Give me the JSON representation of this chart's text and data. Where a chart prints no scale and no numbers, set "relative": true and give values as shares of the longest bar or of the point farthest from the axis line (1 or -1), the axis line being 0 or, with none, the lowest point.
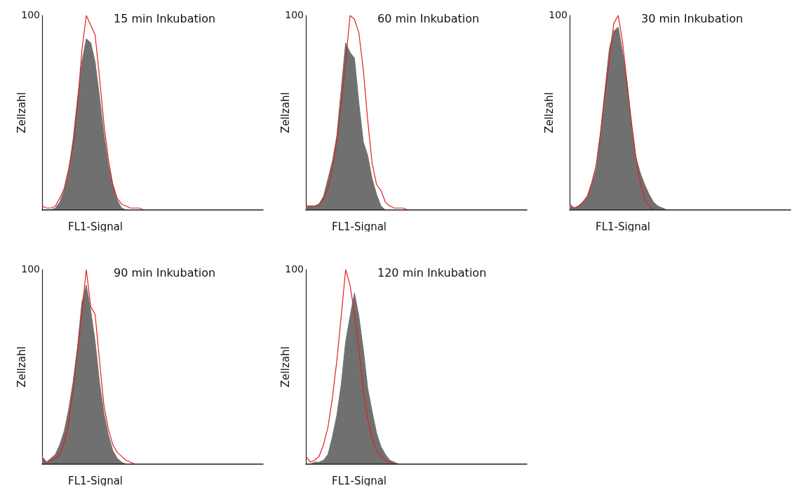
{
  "chart_data": [
    {
      "type": "area",
      "relative": true,
      "title": "15 min Inkubation",
      "xlabel": "FL1-Signal",
      "ylabel": "Zellzahl",
      "annotations": [
        "100"
      ],
      "grid": false,
      "marker": "none",
      "line_style": "solid",
      "categories": [
        null,
        null,
        null,
        null,
        null,
        null,
        null,
        null,
        null,
        null,
        null,
        null,
        null,
        null,
        null,
        null,
        null,
        null,
        null,
        null,
        null,
        null,
        null,
        null,
        null,
        null,
        null,
        null,
        null,
        null,
        null,
        null,
        null,
        null,
        null,
        null,
        null,
        null,
        null,
        null,
        null,
        null,
        null,
        null,
        null,
        null,
        null,
        null,
        null,
        null,
        null
      ],
      "series": [
        {
          "color": "#707070",
          "values": [
            0,
            0,
            0,
            0.01,
            0.04,
            0.1,
            0.2,
            0.36,
            0.57,
            0.76,
            0.88,
            0.86,
            0.76,
            0.58,
            0.39,
            0.23,
            0.13,
            0.05,
            0.01,
            0,
            null,
            null,
            null,
            null,
            null,
            null,
            null,
            null,
            null,
            null,
            null,
            null,
            null,
            null,
            null,
            null,
            null,
            null,
            null,
            null,
            null,
            null,
            null,
            null,
            null,
            null,
            null,
            null,
            null,
            null,
            null
          ]
        },
        {
          "type": "line",
          "color": "#e02020",
          "values": [
            0.02,
            0.01,
            0.01,
            0.02,
            0.06,
            0.11,
            0.21,
            0.33,
            0.53,
            0.82,
            1,
            0.95,
            0.9,
            0.68,
            0.44,
            0.26,
            0.13,
            0.06,
            0.03,
            0.02,
            0.01,
            0.01,
            0.01,
            0,
            null,
            null,
            null,
            null,
            null,
            null,
            null,
            null,
            null,
            null,
            null,
            null,
            null,
            null,
            null,
            null,
            null,
            null,
            null,
            null,
            null,
            null,
            null,
            null,
            null,
            null,
            null
          ]
        }
      ]
    },
    {
      "type": "area",
      "relative": true,
      "title": "60 min Inkubation",
      "xlabel": "FL1-Signal",
      "ylabel": "Zellzahl",
      "annotations": [
        "100"
      ],
      "grid": false,
      "marker": "none",
      "line_style": "solid",
      "categories": [
        null,
        null,
        null,
        null,
        null,
        null,
        null,
        null,
        null,
        null,
        null,
        null,
        null,
        null,
        null,
        null,
        null,
        null,
        null,
        null,
        null,
        null,
        null,
        null,
        null,
        null,
        null,
        null,
        null,
        null,
        null,
        null,
        null,
        null,
        null,
        null,
        null,
        null,
        null,
        null,
        null,
        null,
        null,
        null,
        null,
        null,
        null,
        null,
        null,
        null,
        null
      ],
      "series": [
        {
          "color": "#707070",
          "values": [
            0.02,
            0.02,
            0.02,
            0.03,
            0.07,
            0.16,
            0.25,
            0.38,
            0.62,
            0.86,
            0.81,
            0.78,
            0.55,
            0.35,
            0.28,
            0.16,
            0.08,
            0.02,
            0,
            null,
            null,
            null,
            null,
            null,
            null,
            null,
            null,
            null,
            null,
            null,
            null,
            null,
            null,
            null,
            null,
            null,
            null,
            null,
            null,
            null,
            null,
            null,
            null,
            null,
            null,
            null,
            null,
            null,
            null,
            null,
            null
          ]
        },
        {
          "type": "line",
          "color": "#e02020",
          "values": [
            0.02,
            0.02,
            0.02,
            0.03,
            0.06,
            0.11,
            0.21,
            0.36,
            0.54,
            0.76,
            1,
            0.98,
            0.91,
            0.72,
            0.46,
            0.24,
            0.13,
            0.1,
            0.04,
            0.02,
            0.01,
            0.01,
            0.01,
            0,
            null,
            null,
            null,
            null,
            null,
            null,
            null,
            null,
            null,
            null,
            null,
            null,
            null,
            null,
            null,
            null,
            null,
            null,
            null,
            null,
            null,
            null,
            null,
            null,
            null,
            null,
            null
          ]
        }
      ]
    },
    {
      "type": "area",
      "relative": true,
      "title": "30 min Inkubation",
      "xlabel": "FL1-Signal",
      "ylabel": "Zellzahl",
      "annotations": [
        "100"
      ],
      "grid": false,
      "marker": "none",
      "line_style": "solid",
      "categories": [
        null,
        null,
        null,
        null,
        null,
        null,
        null,
        null,
        null,
        null,
        null,
        null,
        null,
        null,
        null,
        null,
        null,
        null,
        null,
        null,
        null,
        null,
        null,
        null,
        null,
        null,
        null,
        null,
        null,
        null,
        null,
        null,
        null,
        null,
        null,
        null,
        null,
        null,
        null,
        null,
        null,
        null,
        null,
        null,
        null,
        null,
        null,
        null,
        null,
        null,
        null
      ],
      "series": [
        {
          "color": "#707070",
          "values": [
            0.02,
            0.01,
            0.02,
            0.04,
            0.07,
            0.13,
            0.21,
            0.4,
            0.62,
            0.83,
            0.92,
            0.94,
            0.81,
            0.66,
            0.44,
            0.27,
            0.19,
            0.13,
            0.08,
            0.04,
            0.02,
            0.01,
            0,
            null,
            null,
            null,
            null,
            null,
            null,
            null,
            null,
            null,
            null,
            null,
            null,
            null,
            null,
            null,
            null,
            null,
            null,
            null,
            null,
            null,
            null,
            null,
            null,
            null,
            null,
            null,
            null
          ]
        },
        {
          "type": "line",
          "color": "#e02020",
          "values": [
            0.03,
            0.01,
            0.02,
            0.04,
            0.07,
            0.14,
            0.23,
            0.4,
            0.59,
            0.78,
            0.96,
            1,
            0.86,
            0.65,
            0.45,
            0.27,
            0.14,
            0.05,
            0.02,
            0,
            null,
            null,
            null,
            null,
            null,
            null,
            null,
            null,
            null,
            null,
            null,
            null,
            null,
            null,
            null,
            null,
            null,
            null,
            null,
            null,
            null,
            null,
            null,
            null,
            null,
            null,
            null,
            null,
            null,
            null,
            null
          ]
        }
      ]
    },
    {
      "type": "area",
      "relative": true,
      "title": "90 min Inkubation",
      "xlabel": "FL1-Signal",
      "ylabel": "Zellzahl",
      "annotations": [
        "100"
      ],
      "grid": false,
      "marker": "none",
      "line_style": "solid",
      "categories": [
        null,
        null,
        null,
        null,
        null,
        null,
        null,
        null,
        null,
        null,
        null,
        null,
        null,
        null,
        null,
        null,
        null,
        null,
        null,
        null,
        null,
        null,
        null,
        null,
        null,
        null,
        null,
        null,
        null,
        null,
        null,
        null,
        null,
        null,
        null,
        null,
        null,
        null,
        null,
        null,
        null,
        null,
        null,
        null,
        null,
        null,
        null,
        null,
        null,
        null,
        null
      ],
      "series": [
        {
          "color": "#707070",
          "values": [
            0.04,
            0.01,
            0.03,
            0.05,
            0.1,
            0.17,
            0.28,
            0.42,
            0.6,
            0.83,
            0.92,
            0.79,
            0.63,
            0.42,
            0.26,
            0.15,
            0.07,
            0.03,
            0.01,
            0,
            null,
            null,
            null,
            null,
            null,
            null,
            null,
            null,
            null,
            null,
            null,
            null,
            null,
            null,
            null,
            null,
            null,
            null,
            null,
            null,
            null,
            null,
            null,
            null,
            null,
            null,
            null,
            null,
            null,
            null,
            null
          ]
        },
        {
          "type": "line",
          "color": "#e02020",
          "values": [
            0.03,
            0.01,
            0.02,
            0.03,
            0.05,
            0.11,
            0.21,
            0.38,
            0.58,
            0.78,
            1,
            0.81,
            0.77,
            0.53,
            0.3,
            0.18,
            0.1,
            0.06,
            0.04,
            0.02,
            0.01,
            0,
            null,
            null,
            null,
            null,
            null,
            null,
            null,
            null,
            null,
            null,
            null,
            null,
            null,
            null,
            null,
            null,
            null,
            null,
            null,
            null,
            null,
            null,
            null,
            null,
            null,
            null,
            null,
            null,
            null
          ]
        }
      ]
    },
    {
      "type": "area",
      "relative": true,
      "title": "120 min Inkubation",
      "xlabel": "FL1-Signal",
      "ylabel": "Zellzahl",
      "annotations": [
        "100"
      ],
      "grid": false,
      "marker": "none",
      "line_style": "solid",
      "categories": [
        null,
        null,
        null,
        null,
        null,
        null,
        null,
        null,
        null,
        null,
        null,
        null,
        null,
        null,
        null,
        null,
        null,
        null,
        null,
        null,
        null,
        null,
        null,
        null,
        null,
        null,
        null,
        null,
        null,
        null,
        null,
        null,
        null,
        null,
        null,
        null,
        null,
        null,
        null,
        null,
        null,
        null,
        null,
        null,
        null,
        null,
        null,
        null,
        null,
        null,
        null
      ],
      "series": [
        {
          "color": "#707070",
          "values": [
            0,
            0,
            0.01,
            0.01,
            0.02,
            0.05,
            0.14,
            0.25,
            0.41,
            0.63,
            0.76,
            0.88,
            0.76,
            0.59,
            0.39,
            0.27,
            0.16,
            0.09,
            0.05,
            0.02,
            0.01,
            0,
            null,
            null,
            null,
            null,
            null,
            null,
            null,
            null,
            null,
            null,
            null,
            null,
            null,
            null,
            null,
            null,
            null,
            null,
            null,
            null,
            null,
            null,
            null,
            null,
            null,
            null,
            null,
            null,
            null
          ]
        },
        {
          "type": "line",
          "color": "#e02020",
          "values": [
            0.04,
            0.01,
            0.02,
            0.04,
            0.1,
            0.19,
            0.34,
            0.53,
            0.76,
            1,
            0.92,
            0.77,
            0.59,
            0.38,
            0.23,
            0.13,
            0.07,
            0.04,
            0.02,
            0.01,
            0,
            null,
            null,
            null,
            null,
            null,
            null,
            null,
            null,
            null,
            null,
            null,
            null,
            null,
            null,
            null,
            null,
            null,
            null,
            null,
            null,
            null,
            null,
            null,
            null,
            null,
            null,
            null,
            null,
            null,
            null
          ]
        }
      ]
    }
  ]
}
